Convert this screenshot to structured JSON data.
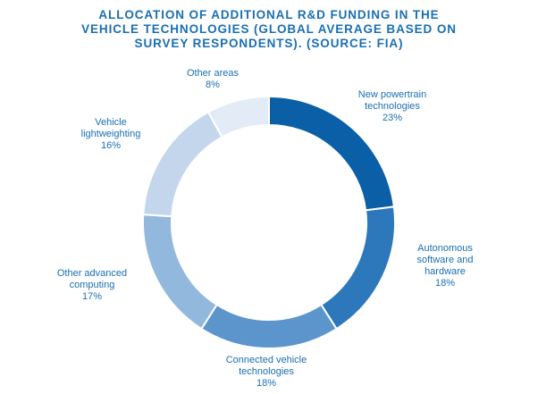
{
  "chart_data": {
    "type": "pie",
    "title_lines": [
      "ALLOCATION OF ADDITIONAL R&D FUNDING IN THE",
      "VEHICLE TECHNOLOGIES (GLOBAL AVERAGE BASED ON",
      "SURVEY RESPONDENTS). (SOURCE: FIA)"
    ],
    "unit": "%",
    "slices": [
      {
        "label_lines": [
          "New powertrain",
          "technologies"
        ],
        "value": 23,
        "value_text": "23%",
        "color": "#0a5fa6"
      },
      {
        "label_lines": [
          "Autonomous",
          "software and",
          "hardware"
        ],
        "value": 18,
        "value_text": "18%",
        "color": "#2c78bb"
      },
      {
        "label_lines": [
          "Connected vehicle",
          "technologies"
        ],
        "value": 18,
        "value_text": "18%",
        "color": "#5c95cb"
      },
      {
        "label_lines": [
          "Other advanced",
          "computing"
        ],
        "value": 17,
        "value_text": "17%",
        "color": "#93b8de"
      },
      {
        "label_lines": [
          "Vehicle",
          "lightweighting"
        ],
        "value": 16,
        "value_text": "16%",
        "color": "#c3d6ec"
      },
      {
        "label_lines": [
          "Other areas"
        ],
        "value": 8,
        "value_text": "8%",
        "color": "#e3ebf6"
      }
    ]
  }
}
